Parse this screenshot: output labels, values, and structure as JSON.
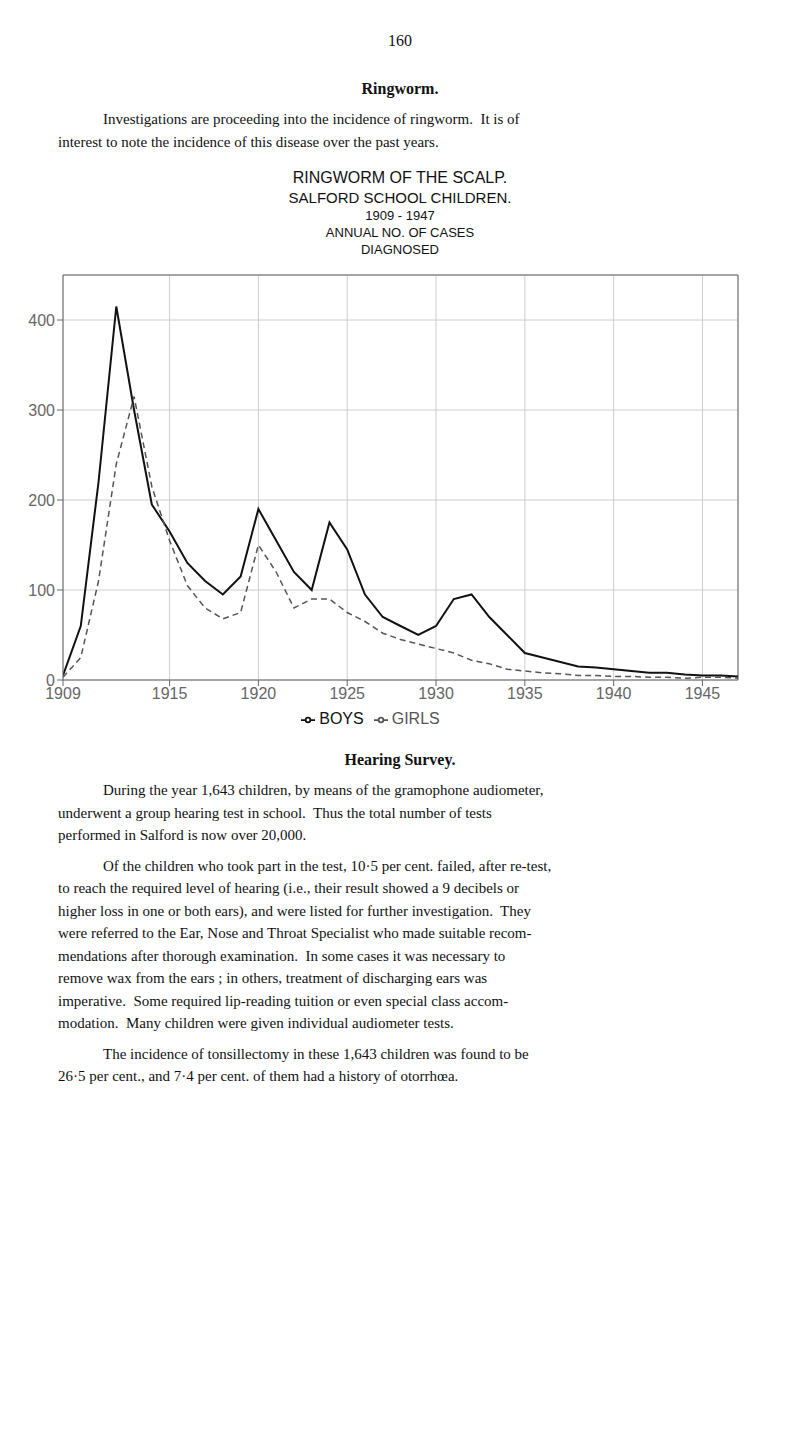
{
  "chart_data": {
    "type": "line",
    "title": "RINGWORM OF THE SCALP.",
    "subtitle": "SALFORD SCHOOL CHILDREN.",
    "annotations": [
      "1909 - 1947",
      "ANNUAL NO. OF CASES",
      "DIAGNOSED"
    ],
    "x": [
      1909,
      1910,
      1911,
      1912,
      1913,
      1914,
      1915,
      1916,
      1917,
      1918,
      1919,
      1920,
      1921,
      1922,
      1923,
      1924,
      1925,
      1926,
      1927,
      1928,
      1929,
      1930,
      1931,
      1932,
      1933,
      1934,
      1935,
      1936,
      1937,
      1938,
      1939,
      1940,
      1941,
      1942,
      1943,
      1944,
      1945,
      1946,
      1947
    ],
    "series": [
      {
        "name": "BOYS",
        "color": "#111111",
        "line_style": "solid",
        "values": [
          5,
          60,
          220,
          415,
          300,
          195,
          165,
          130,
          110,
          95,
          115,
          190,
          155,
          120,
          100,
          175,
          145,
          95,
          70,
          60,
          50,
          60,
          90,
          95,
          70,
          50,
          30,
          25,
          20,
          15,
          14,
          12,
          10,
          8,
          8,
          6,
          5,
          5,
          4
        ]
      },
      {
        "name": "GIRLS",
        "color": "#555555",
        "line_style": "dashed",
        "values": [
          3,
          25,
          110,
          240,
          315,
          215,
          155,
          105,
          80,
          68,
          75,
          150,
          120,
          80,
          90,
          90,
          75,
          65,
          52,
          45,
          40,
          35,
          30,
          22,
          18,
          12,
          10,
          8,
          7,
          5,
          5,
          4,
          4,
          3,
          3,
          2,
          3,
          3,
          2
        ]
      }
    ],
    "xlim": [
      1909,
      1947
    ],
    "xticks": [
      1909,
      1915,
      1920,
      1925,
      1930,
      1935,
      1940,
      1945
    ],
    "ylim": [
      0,
      450
    ],
    "yticks": [
      0,
      100,
      200,
      300,
      400
    ],
    "grid": true,
    "legend": "bottom"
  },
  "page": {
    "number": "160",
    "before": [
      {
        "heading": "Ringworm."
      },
      {
        "paragraph": "Investigations are proceeding into the incidence of ringworm.  It is of\ninterest to note the incidence of this disease over the past years."
      }
    ],
    "after": [
      {
        "heading": "Hearing Survey."
      },
      {
        "paragraph": "During the year 1,643 children, by means of the gramophone audiometer,\nunderwent a group hearing test in school.  Thus the total number of tests\nperformed in Salford is now over 20,000."
      },
      {
        "paragraph": "Of the children who took part in the test, 10·5 per cent. failed, after re-test,\nto reach the required level of hearing (i.e., their result showed a 9 decibels or\nhigher loss in one or both ears), and were listed for further investigation.  They\nwere referred to the Ear, Nose and Throat Specialist who made suitable recom-\nmendations after thorough examination.  In some cases it was necessary to\nremove wax from the ears ; in others, treatment of discharging ears was\nimperative.  Some required lip-reading tuition or even special class accom-\nmodation.  Many children were given individual audiometer tests."
      },
      {
        "paragraph": "The incidence of tonsillectomy in these 1,643 children was found to be\n26·5 per cent., and 7·4 per cent. of them had a history of otorrhœa."
      }
    ]
  }
}
